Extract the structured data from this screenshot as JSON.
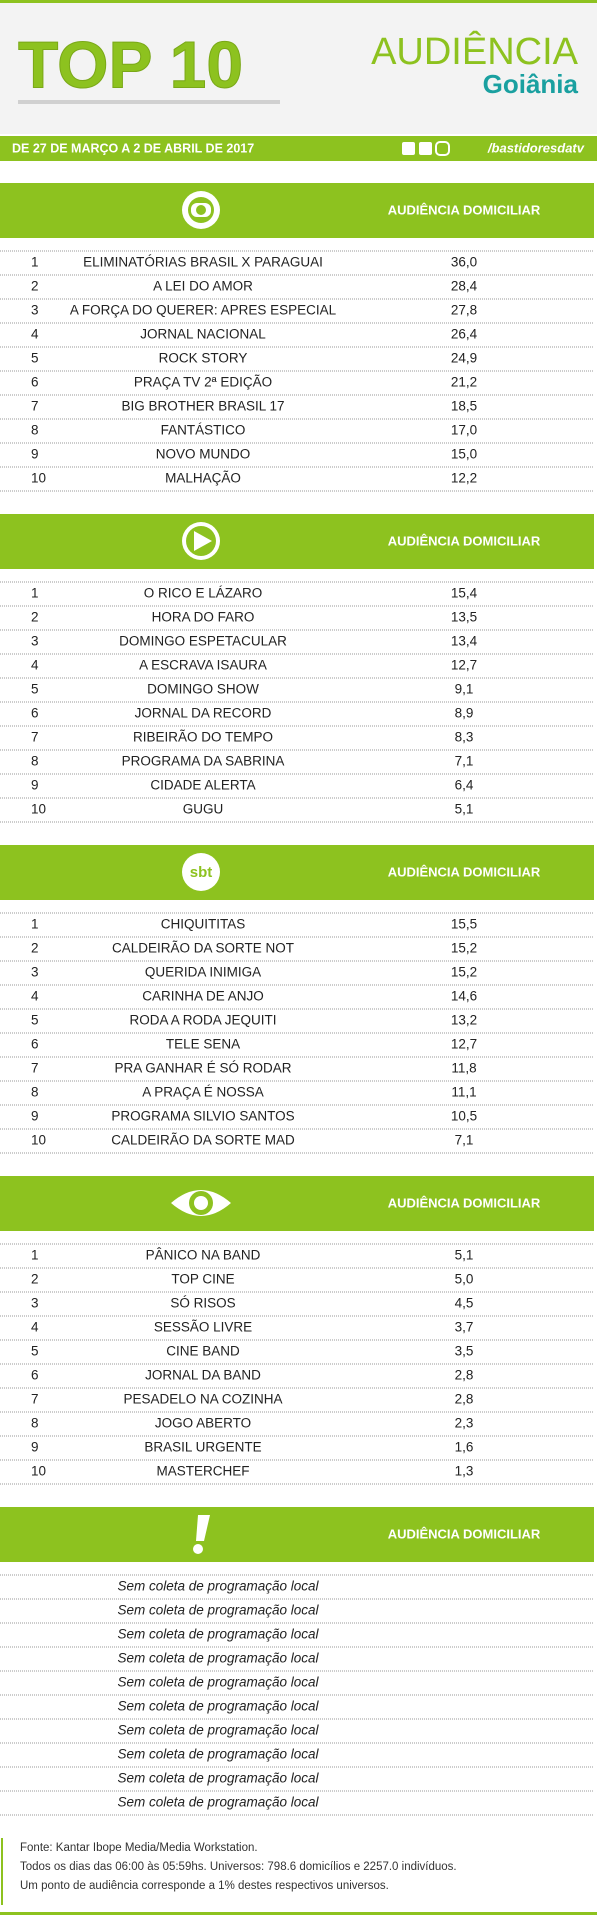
{
  "header": {
    "title": "TOP 10",
    "brand": "AUDIÊNCIA",
    "city": "Goiânia"
  },
  "date_bar": {
    "period": "DE 27 DE MARÇO A 2 DE ABRIL DE 2017",
    "handle": "/bastidoresdatv"
  },
  "sections": [
    {
      "column_header": "AUDIÊNCIA DOMICILIAR",
      "rows": [
        {
          "rank": 1,
          "program": "ELIMINATÓRIAS BRASIL X PARAGUAI",
          "rating": "36,0"
        },
        {
          "rank": 2,
          "program": "A LEI DO AMOR",
          "rating": "28,4"
        },
        {
          "rank": 3,
          "program": "A FORÇA DO QUERER: APRES ESPECIAL",
          "rating": "27,8"
        },
        {
          "rank": 4,
          "program": "JORNAL NACIONAL",
          "rating": "26,4"
        },
        {
          "rank": 5,
          "program": "ROCK STORY",
          "rating": "24,9"
        },
        {
          "rank": 6,
          "program": "PRAÇA TV 2ª EDIÇÃO",
          "rating": "21,2"
        },
        {
          "rank": 7,
          "program": "BIG BROTHER BRASIL 17",
          "rating": "18,5"
        },
        {
          "rank": 8,
          "program": "FANTÁSTICO",
          "rating": "17,0"
        },
        {
          "rank": 9,
          "program": "NOVO MUNDO",
          "rating": "15,0"
        },
        {
          "rank": 10,
          "program": "MALHAÇÃO",
          "rating": "12,2"
        }
      ]
    },
    {
      "column_header": "AUDIÊNCIA DOMICILIAR",
      "rows": [
        {
          "rank": 1,
          "program": "O RICO E LÁZARO",
          "rating": "15,4"
        },
        {
          "rank": 2,
          "program": "HORA DO FARO",
          "rating": "13,5"
        },
        {
          "rank": 3,
          "program": "DOMINGO ESPETACULAR",
          "rating": "13,4"
        },
        {
          "rank": 4,
          "program": "A ESCRAVA ISAURA",
          "rating": "12,7"
        },
        {
          "rank": 5,
          "program": "DOMINGO SHOW",
          "rating": "9,1"
        },
        {
          "rank": 6,
          "program": "JORNAL DA RECORD",
          "rating": "8,9"
        },
        {
          "rank": 7,
          "program": "RIBEIRÃO DO TEMPO",
          "rating": "8,3"
        },
        {
          "rank": 8,
          "program": "PROGRAMA DA SABRINA",
          "rating": "7,1"
        },
        {
          "rank": 9,
          "program": "CIDADE ALERTA",
          "rating": "6,4"
        },
        {
          "rank": 10,
          "program": "GUGU",
          "rating": "5,1"
        }
      ]
    },
    {
      "logo": "sbt",
      "column_header": "AUDIÊNCIA DOMICILIAR",
      "rows": [
        {
          "rank": 1,
          "program": "CHIQUITITAS",
          "rating": "15,5"
        },
        {
          "rank": 2,
          "program": "CALDEIRÃO DA SORTE NOT",
          "rating": "15,2"
        },
        {
          "rank": 3,
          "program": "QUERIDA INIMIGA",
          "rating": "15,2"
        },
        {
          "rank": 4,
          "program": "CARINHA DE ANJO",
          "rating": "14,6"
        },
        {
          "rank": 5,
          "program": "RODA A RODA JEQUITI",
          "rating": "13,2"
        },
        {
          "rank": 6,
          "program": "TELE SENA",
          "rating": "12,7"
        },
        {
          "rank": 7,
          "program": "PRA GANHAR É SÓ RODAR",
          "rating": "11,8"
        },
        {
          "rank": 8,
          "program": "A PRAÇA É NOSSA",
          "rating": "11,1"
        },
        {
          "rank": 9,
          "program": "PROGRAMA SILVIO SANTOS",
          "rating": "10,5"
        },
        {
          "rank": 10,
          "program": "CALDEIRÃO DA SORTE MAD",
          "rating": "7,1"
        }
      ]
    },
    {
      "column_header": "AUDIÊNCIA DOMICILIAR",
      "rows": [
        {
          "rank": 1,
          "program": "PÂNICO NA BAND",
          "rating": "5,1"
        },
        {
          "rank": 2,
          "program": "TOP CINE",
          "rating": "5,0"
        },
        {
          "rank": 3,
          "program": "SÓ RISOS",
          "rating": "4,5"
        },
        {
          "rank": 4,
          "program": "SESSÃO LIVRE",
          "rating": "3,7"
        },
        {
          "rank": 5,
          "program": "CINE BAND",
          "rating": "3,5"
        },
        {
          "rank": 6,
          "program": "JORNAL DA BAND",
          "rating": "2,8"
        },
        {
          "rank": 7,
          "program": "PESADELO NA COZINHA",
          "rating": "2,8"
        },
        {
          "rank": 8,
          "program": "JOGO ABERTO",
          "rating": "2,3"
        },
        {
          "rank": 9,
          "program": "BRASIL URGENTE",
          "rating": "1,6"
        },
        {
          "rank": 10,
          "program": "MASTERCHEF",
          "rating": "1,3"
        }
      ]
    },
    {
      "column_header": "AUDIÊNCIA DOMICILIAR",
      "rows": [
        {
          "program": "Sem coleta de programação local"
        },
        {
          "program": "Sem coleta de programação local"
        },
        {
          "program": "Sem coleta de programação local"
        },
        {
          "program": "Sem coleta de programação local"
        },
        {
          "program": "Sem coleta de programação local"
        },
        {
          "program": "Sem coleta de programação local"
        },
        {
          "program": "Sem coleta de programação local"
        },
        {
          "program": "Sem coleta de programação local"
        },
        {
          "program": "Sem coleta de programação local"
        },
        {
          "program": "Sem coleta de programação local"
        }
      ]
    }
  ],
  "footer": [
    "Fonte: Kantar Ibope Media/Media Workstation.",
    "Todos os dias das 06:00 às 05:59hs. Universos: 798.6 domicílios e 2257.0 indivíduos.",
    "Um ponto de audiência corresponde a 1% destes respectivos universos."
  ]
}
